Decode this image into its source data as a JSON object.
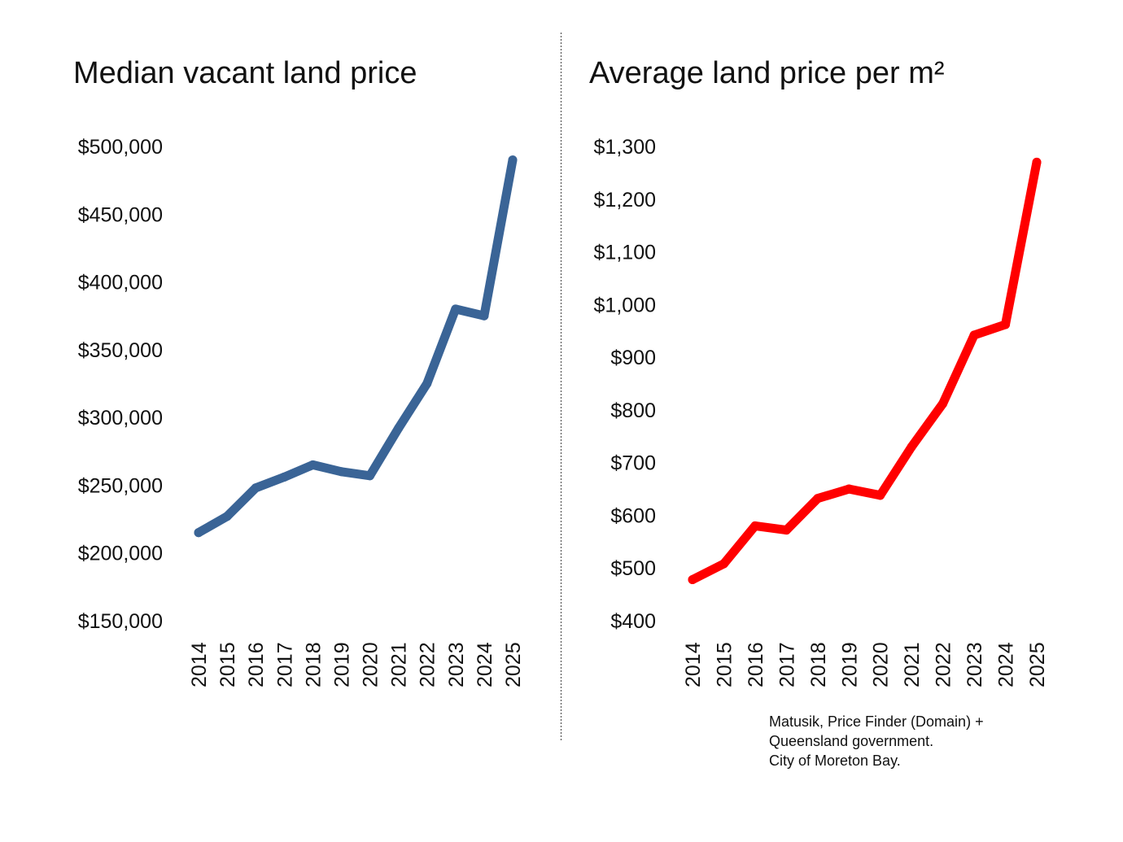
{
  "chart_data": [
    {
      "type": "line",
      "title": "Median vacant land price",
      "xlabel": "",
      "ylabel": "",
      "categories": [
        "2014",
        "2015",
        "2016",
        "2017",
        "2018",
        "2019",
        "2020",
        "2021",
        "2022",
        "2023",
        "2024",
        "2025"
      ],
      "series": [
        {
          "name": "Median vacant land price",
          "color": "#3a6496",
          "values": [
            215000,
            227000,
            248000,
            256000,
            265000,
            260000,
            257000,
            292000,
            325000,
            380000,
            375000,
            490000
          ]
        }
      ],
      "ylim": [
        150000,
        500000
      ],
      "yticks": [
        500000,
        450000,
        400000,
        350000,
        300000,
        250000,
        200000,
        150000
      ],
      "ytick_labels": [
        "$500,000",
        "$450,000",
        "$400,000",
        "$350,000",
        "$300,000",
        "$250,000",
        "$200,000",
        "$150,000"
      ],
      "grid": false
    },
    {
      "type": "line",
      "title": "Average land price per m²",
      "xlabel": "",
      "ylabel": "",
      "categories": [
        "2014",
        "2015",
        "2016",
        "2017",
        "2018",
        "2019",
        "2020",
        "2021",
        "2022",
        "2023",
        "2024",
        "2025"
      ],
      "series": [
        {
          "name": "Average land price per m²",
          "color": "#ff0000",
          "values": [
            478,
            508,
            580,
            572,
            632,
            650,
            638,
            730,
            812,
            942,
            962,
            1270
          ]
        }
      ],
      "ylim": [
        400,
        1300
      ],
      "yticks": [
        1300,
        1200,
        1100,
        1000,
        900,
        800,
        700,
        600,
        500,
        400
      ],
      "ytick_labels": [
        "$1,300",
        "$1,200",
        "$1,100",
        "$1,000",
        "$900",
        "$800",
        "$700",
        "$600",
        "$500",
        "$400"
      ],
      "grid": false
    }
  ],
  "source": {
    "lines": [
      "Matusik, Price Finder (Domain) +",
      "Queensland government.",
      "City of Moreton Bay."
    ]
  },
  "divider": {
    "color": "#555555"
  }
}
